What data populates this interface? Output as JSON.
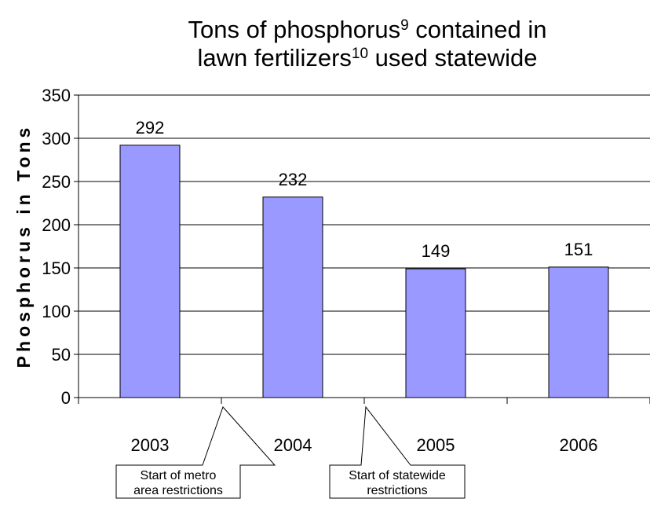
{
  "chart_data": {
    "type": "bar",
    "title": [
      [
        {
          "text": "Tons of phosphorus",
          "sup": false
        },
        {
          "text": "9",
          "sup": true
        },
        {
          "text": " contained in",
          "sup": false
        }
      ],
      [
        {
          "text": "lawn fertilizers",
          "sup": false
        },
        {
          "text": "10",
          "sup": true
        },
        {
          "text": " used statewide",
          "sup": false
        }
      ]
    ],
    "y_label": "Phosphorus in Tons",
    "categories": [
      "2003",
      "2004",
      "2005",
      "2006"
    ],
    "values": [
      292,
      232,
      149,
      151
    ],
    "color": "#9999ff",
    "ylim": [
      0,
      350
    ],
    "yticks": [
      0,
      50,
      100,
      150,
      200,
      250,
      300,
      350
    ],
    "grid": true,
    "annotations": [
      {
        "lines": [
          "Start of metro",
          "area restrictions"
        ]
      },
      {
        "lines": [
          "Start of statewide",
          "restrictions"
        ]
      }
    ]
  }
}
